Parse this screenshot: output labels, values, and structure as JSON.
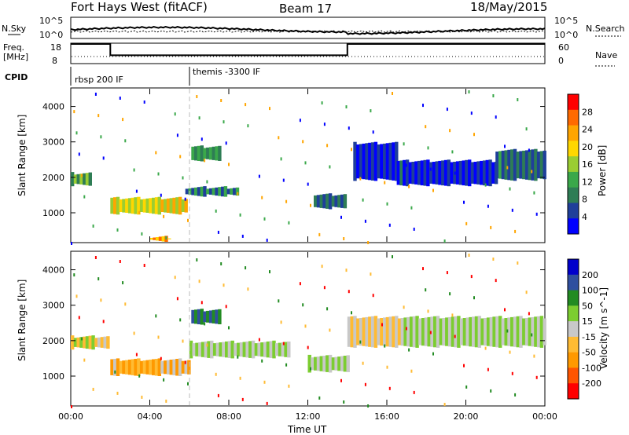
{
  "header": {
    "station": "Fort Hays West (fitACF)",
    "beam": "Beam 17",
    "date": "18/May/2015"
  },
  "top_panels": {
    "nsky_label": "N.Sky",
    "nsky_ticks": [
      "10^5",
      "10^0"
    ],
    "nsearch_label": "N.Search",
    "nsearch_ticks": [
      "10^5",
      "10^0"
    ],
    "freq_label_1": "Freq.",
    "freq_label_2": "[MHz]",
    "freq_ticks": [
      "18",
      "8"
    ],
    "nave_label": "Nave",
    "nave_ticks": [
      "60",
      "0"
    ],
    "cpid_label": "CPID",
    "cpid_segments": [
      {
        "label": "rbsp 200 IF",
        "start": 0,
        "end": 6
      },
      {
        "label": "themis -3300 IF",
        "start": 6,
        "end": 24
      }
    ],
    "freq_profile": [
      {
        "start": 0,
        "end": 2,
        "freq": 18
      },
      {
        "start": 2,
        "end": 14,
        "freq": 12
      },
      {
        "start": 14,
        "end": 24,
        "freq": 18
      }
    ]
  },
  "chart_data": [
    {
      "type": "heatmap",
      "title": "Power",
      "xlabel": "Time UT",
      "ylabel": "Slant Range [km]",
      "xticks": [
        "00:00",
        "04:00",
        "08:00",
        "12:00",
        "16:00",
        "20:00",
        "00:00"
      ],
      "xlim_hours": [
        0,
        24
      ],
      "yticks": [
        1000,
        2000,
        3000,
        4000
      ],
      "ylim": [
        180,
        4500
      ],
      "colorbar_label": "Power [dB]",
      "colorbar_ticks": [
        "28",
        "24",
        "20",
        "16",
        "12",
        "8",
        "4"
      ],
      "colorbar_colors": [
        "#0000ff",
        "#1f3f9a",
        "#2e7d55",
        "#3aa84a",
        "#9acd32",
        "#ffd700",
        "#ffa500",
        "#ff6a00",
        "#ff0000"
      ],
      "regions": [
        {
          "t0": 0.0,
          "t1": 1.0,
          "r0": 1750,
          "r1": 2150,
          "level": 3
        },
        {
          "t0": 2.0,
          "t1": 5.8,
          "r0": 950,
          "r1": 1450,
          "level": 5
        },
        {
          "t0": 5.8,
          "t1": 8.5,
          "r0": 1450,
          "r1": 1750,
          "level": 2
        },
        {
          "t0": 6.1,
          "t1": 7.5,
          "r0": 2450,
          "r1": 2900,
          "level": 3
        },
        {
          "t0": 12.3,
          "t1": 13.9,
          "r0": 1100,
          "r1": 1550,
          "level": 2
        },
        {
          "t0": 14.3,
          "t1": 16.5,
          "r0": 1900,
          "r1": 3000,
          "level": 1
        },
        {
          "t0": 16.5,
          "t1": 21.5,
          "r0": 1750,
          "r1": 2500,
          "level": 1
        },
        {
          "t0": 21.5,
          "t1": 24.0,
          "r0": 1900,
          "r1": 2800,
          "level": 2
        },
        {
          "t0": 4.0,
          "t1": 5.0,
          "r0": 180,
          "r1": 350,
          "level": 6
        }
      ]
    },
    {
      "type": "heatmap",
      "title": "Velocity",
      "xlabel": "Time UT",
      "ylabel": "Slant Range [km]",
      "xticks": [
        "00:00",
        "04:00",
        "08:00",
        "12:00",
        "16:00",
        "20:00",
        "00:00"
      ],
      "xlim_hours": [
        0,
        24
      ],
      "yticks": [
        1000,
        2000,
        3000,
        4000
      ],
      "ylim": [
        180,
        4500
      ],
      "colorbar_label": "Velocity [m s^-1]",
      "colorbar_ticks": [
        "200",
        "100",
        "50",
        "15",
        "-15",
        "-50",
        "-100",
        "-200"
      ],
      "colorbar_colors": [
        "#ff0000",
        "#ff5500",
        "#ff9900",
        "#ffbb33",
        "#c8c8c8",
        "#7ccd30",
        "#228b22",
        "#2f4f9f",
        "#0000cc"
      ],
      "regions": [
        {
          "t0": 0.0,
          "t1": 1.8,
          "r0": 1750,
          "r1": 2150,
          "level": 4
        },
        {
          "t0": 2.0,
          "t1": 6.0,
          "r0": 1000,
          "r1": 1500,
          "level": 3
        },
        {
          "t0": 6.0,
          "t1": 11.0,
          "r0": 1500,
          "r1": 2000,
          "level": 4
        },
        {
          "t0": 6.1,
          "t1": 7.6,
          "r0": 2450,
          "r1": 2900,
          "level": 7
        },
        {
          "t0": 12.0,
          "t1": 14.0,
          "r0": 1100,
          "r1": 1600,
          "level": 5
        },
        {
          "t0": 14.0,
          "t1": 24.0,
          "r0": 1800,
          "r1": 2700,
          "level": 4
        }
      ]
    }
  ]
}
